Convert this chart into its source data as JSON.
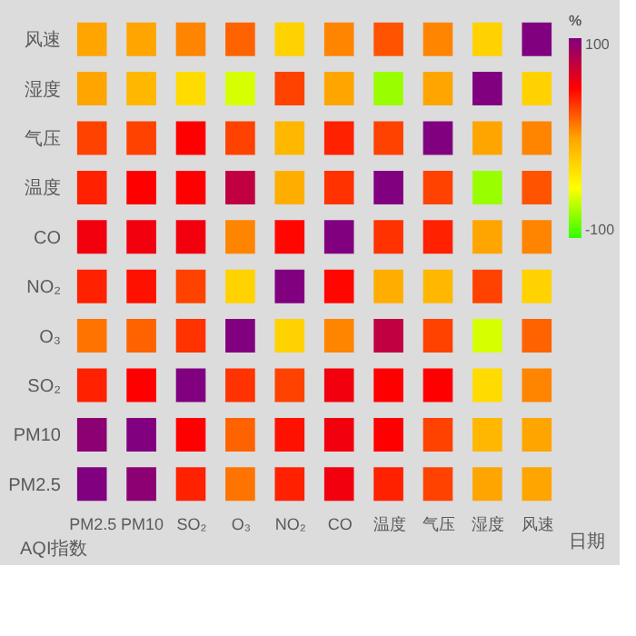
{
  "chart_data": {
    "type": "heatmap",
    "annotations": [
      "AQI指数",
      "日期"
    ],
    "legend_title": "%",
    "categories": [
      "PM2.5",
      "PM10",
      "SO₂",
      "O₃",
      "NO₂",
      "CO",
      "温度",
      "气压",
      "湿度",
      "风速"
    ],
    "y_categories": [
      "风速",
      "湿度",
      "气压",
      "温度",
      "CO",
      "NO₂",
      "O₃",
      "SO₂",
      "PM10",
      "PM2.5"
    ],
    "cells": [
      [
        0,
        0,
        10,
        20,
        -25,
        10,
        25,
        10,
        -25,
        100
      ],
      [
        0,
        -10,
        -30,
        -60,
        30,
        0,
        -75,
        0,
        100,
        -25
      ],
      [
        30,
        30,
        50,
        30,
        -10,
        40,
        30,
        100,
        0,
        10
      ],
      [
        40,
        50,
        50,
        75,
        -5,
        35,
        100,
        30,
        -75,
        25
      ],
      [
        55,
        55,
        55,
        10,
        48,
        100,
        35,
        40,
        0,
        10
      ],
      [
        40,
        45,
        30,
        -25,
        100,
        48,
        -5,
        -10,
        30,
        -25
      ],
      [
        15,
        20,
        35,
        100,
        -25,
        10,
        75,
        30,
        -60,
        20
      ],
      [
        40,
        50,
        100,
        35,
        30,
        55,
        50,
        50,
        -30,
        10
      ],
      [
        95,
        100,
        50,
        20,
        45,
        55,
        50,
        30,
        -10,
        0
      ],
      [
        100,
        95,
        40,
        15,
        40,
        55,
        40,
        30,
        0,
        0
      ]
    ],
    "clim": [
      -100,
      100
    ],
    "cticks": [
      100,
      -100
    ]
  }
}
